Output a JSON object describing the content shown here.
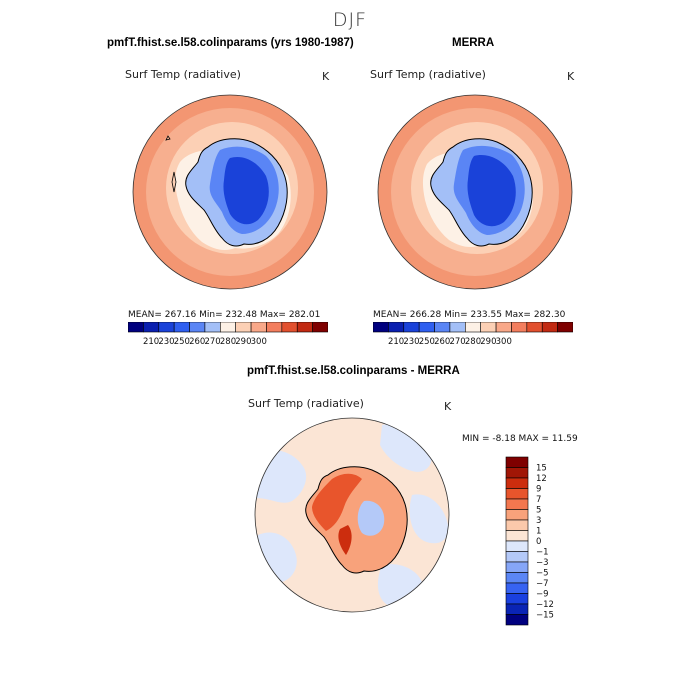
{
  "page_title": "DJF",
  "panels": [
    {
      "title": "pmfT.fhist.se.l58.colinparams (yrs 1980-1987)",
      "variable": "Surf Temp (radiative)",
      "units": "K",
      "stats": "MEAN=  267.16   Min=  232.48   Max=  282.01"
    },
    {
      "title": "MERRA",
      "variable": "Surf Temp (radiative)",
      "units": "K",
      "stats": "MEAN=  266.28   Min=  233.55   Max=  282.30"
    },
    {
      "title": "pmfT.fhist.se.l58.colinparams - MERRA",
      "variable": "Surf Temp (radiative)",
      "units": "K",
      "stats": "MIN =   -8.18  MAX =   11.59"
    }
  ],
  "colorbar_abs": {
    "colors": [
      "#00007f",
      "#0a1fb0",
      "#1a42d9",
      "#2f5ff0",
      "#5a85f5",
      "#a3bff7",
      "#fdf1e6",
      "#fcd0b5",
      "#f9a889",
      "#f37e5e",
      "#e2502e",
      "#c22a12",
      "#7f0000"
    ],
    "tick_labels": [
      "210",
      "230",
      "250",
      "260",
      "270",
      "280",
      "290",
      "300"
    ]
  },
  "colorbar_diff": {
    "colors": [
      "#00007f",
      "#0a24b5",
      "#1a40e0",
      "#3763f2",
      "#5b86f5",
      "#86a6f7",
      "#b4c9f8",
      "#dde7fb",
      "#fbe5d5",
      "#fbc9ab",
      "#f8a27b",
      "#f3774f",
      "#e8552c",
      "#cc2d0e",
      "#a11606",
      "#7f0000"
    ],
    "tick_labels": [
      "15",
      "12",
      "9",
      "7",
      "5",
      "3",
      "1",
      "0",
      "−1",
      "−3",
      "−5",
      "−7",
      "−9",
      "−12",
      "−15"
    ]
  }
}
